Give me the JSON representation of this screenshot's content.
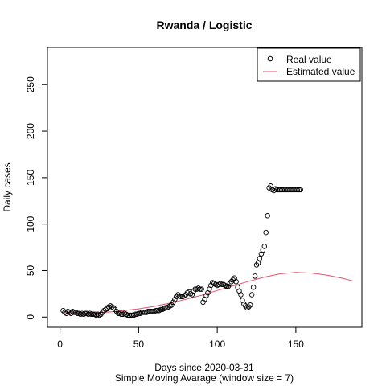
{
  "chart_data": {
    "type": "scatter",
    "title": "Rwanda / Logistic",
    "xlabel": "Days since 2020-03-31",
    "subtitle": "Simple Moving Avarage (window size = 7)",
    "ylabel": "Daily cases",
    "xlim": [
      -8,
      192
    ],
    "ylim": [
      -11,
      290
    ],
    "x_ticks": [
      0,
      50,
      100,
      150
    ],
    "y_ticks": [
      0,
      50,
      100,
      150,
      200,
      250
    ],
    "grid": false,
    "legend_position": "top-right",
    "legend": [
      {
        "label": "Real value",
        "marker": "open-circle",
        "color": "#000000"
      },
      {
        "label": "Estimated value",
        "marker": "line",
        "color": "#DF536B"
      }
    ],
    "series": [
      {
        "name": "Real value",
        "marker": "open-circle",
        "color": "#000000",
        "x": [
          2,
          3,
          4,
          5,
          6,
          7,
          8,
          9,
          10,
          11,
          12,
          13,
          14,
          15,
          16,
          17,
          18,
          19,
          20,
          21,
          22,
          23,
          24,
          25,
          26,
          27,
          28,
          29,
          30,
          31,
          32,
          33,
          34,
          35,
          36,
          37,
          38,
          39,
          40,
          41,
          42,
          43,
          44,
          45,
          46,
          47,
          48,
          49,
          50,
          51,
          52,
          53,
          54,
          55,
          56,
          57,
          58,
          59,
          60,
          61,
          62,
          63,
          64,
          65,
          66,
          67,
          68,
          69,
          70,
          71,
          72,
          73,
          74,
          75,
          76,
          77,
          78,
          79,
          80,
          81,
          82,
          83,
          84,
          85,
          86,
          87,
          88,
          89,
          90,
          91,
          92,
          93,
          94,
          95,
          96,
          97,
          98,
          99,
          100,
          101,
          102,
          103,
          104,
          105,
          106,
          107,
          108,
          109,
          110,
          111,
          112,
          113,
          114,
          115,
          116,
          117,
          118,
          119,
          120,
          121,
          122,
          123,
          124,
          125,
          126,
          127,
          128,
          129,
          130,
          131,
          132,
          133,
          134,
          135,
          136,
          137,
          138,
          139,
          140,
          141,
          142,
          143,
          144,
          145,
          146,
          147,
          148,
          149,
          150,
          151,
          152,
          153
        ],
        "y": [
          7,
          5,
          4,
          6,
          5,
          4,
          6,
          5,
          5,
          4,
          4,
          3,
          4,
          3,
          4,
          4,
          3,
          4,
          3,
          3,
          3,
          2,
          3,
          2,
          3,
          5,
          7,
          8,
          9,
          11,
          12,
          11,
          10,
          8,
          6,
          4,
          4,
          3,
          3,
          4,
          3,
          2,
          2,
          2,
          2,
          2,
          3,
          3,
          4,
          4,
          5,
          5,
          5,
          5,
          6,
          6,
          6,
          6,
          6,
          7,
          7,
          7,
          8,
          8,
          9,
          10,
          10,
          11,
          12,
          13,
          16,
          19,
          22,
          24,
          23,
          22,
          22,
          23,
          24,
          26,
          27,
          25,
          24,
          28,
          30,
          30,
          31,
          30,
          30,
          16,
          19,
          23,
          26,
          30,
          34,
          37,
          36,
          35,
          34,
          35,
          36,
          35,
          35,
          34,
          33,
          33,
          36,
          38,
          40,
          42,
          38,
          32,
          28,
          24,
          18,
          14,
          12,
          10,
          11,
          13,
          24,
          32,
          44,
          56,
          58,
          63,
          68,
          72,
          76,
          91,
          109,
          139,
          141,
          137,
          136,
          138,
          137,
          137,
          137,
          137,
          137,
          137,
          137,
          137,
          137,
          137,
          137,
          137,
          137,
          137,
          137,
          137
        ]
      },
      {
        "name": "Estimated value",
        "marker": "line",
        "color": "#DF536B",
        "x": [
          2,
          10,
          20,
          30,
          40,
          50,
          60,
          70,
          80,
          90,
          100,
          110,
          120,
          130,
          140,
          150,
          160,
          170,
          180,
          186
        ],
        "y": [
          3.5,
          3.7,
          4.3,
          5.2,
          6.8,
          8.8,
          11.5,
          15.0,
          19.0,
          23.5,
          28.5,
          33.5,
          38.5,
          43.0,
          46.5,
          48.0,
          47.3,
          45.0,
          41.5,
          39.0
        ]
      }
    ]
  }
}
